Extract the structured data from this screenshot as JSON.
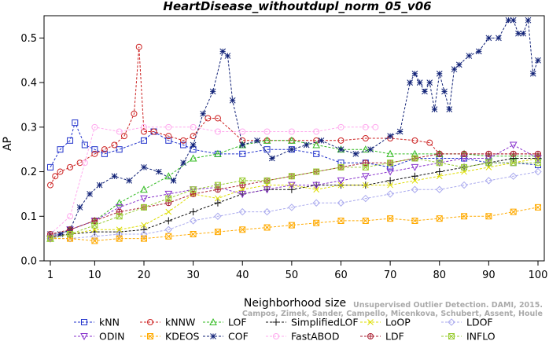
{
  "chart_data": {
    "type": "line",
    "title": "HeartDisease_withoutdupl_norm_05_v06",
    "xlabel": "Neighborhood size",
    "ylabel": "AP",
    "xlim": [
      1,
      100
    ],
    "ylim": [
      0,
      0.55
    ],
    "xticks": [
      1,
      10,
      20,
      30,
      40,
      50,
      60,
      70,
      80,
      90,
      100
    ],
    "yticks": [
      0.0,
      0.1,
      0.2,
      0.3,
      0.4,
      0.5
    ],
    "xtick_labels": [
      "1",
      "10",
      "20",
      "30",
      "40",
      "50",
      "60",
      "70",
      "80",
      "90",
      "100"
    ],
    "ytick_labels": [
      "0.0",
      "0.1",
      "0.2",
      "0.3",
      "0.4",
      "0.5"
    ],
    "legend_position": "bottom",
    "credit_lines": [
      "Unsupervised Outlier Detection. DAMI, 2015.",
      "Campos, Zimek, Sander, Campello, Micenkova, Schubert, Assent, Houle"
    ],
    "series": [
      {
        "name": "kNN",
        "color": "#2233cc",
        "marker": "square",
        "x": [
          1,
          3,
          5,
          6,
          8,
          10,
          12,
          15,
          20,
          22,
          25,
          28,
          30,
          35,
          40,
          45,
          50,
          55,
          60,
          65,
          70,
          75,
          80,
          85,
          90,
          95,
          100
        ],
        "y": [
          0.21,
          0.25,
          0.27,
          0.31,
          0.26,
          0.25,
          0.24,
          0.25,
          0.27,
          0.29,
          0.27,
          0.26,
          0.25,
          0.24,
          0.24,
          0.25,
          0.25,
          0.24,
          0.22,
          0.22,
          0.21,
          0.23,
          0.23,
          0.23,
          0.22,
          0.22,
          0.215
        ]
      },
      {
        "name": "kNNW",
        "color": "#cc2222",
        "marker": "circle",
        "x": [
          1,
          2,
          3,
          5,
          7,
          10,
          12,
          14,
          16,
          18,
          19,
          20,
          22,
          25,
          28,
          30,
          33,
          35,
          40,
          45,
          50,
          55,
          60,
          65,
          70,
          75,
          78,
          80,
          85,
          90,
          95,
          100
        ],
        "y": [
          0.17,
          0.19,
          0.2,
          0.21,
          0.22,
          0.24,
          0.25,
          0.26,
          0.28,
          0.33,
          0.48,
          0.29,
          0.29,
          0.28,
          0.27,
          0.28,
          0.32,
          0.32,
          0.27,
          0.27,
          0.27,
          0.27,
          0.27,
          0.275,
          0.275,
          0.27,
          0.265,
          0.24,
          0.24,
          0.24,
          0.24,
          0.24
        ]
      },
      {
        "name": "LOF",
        "color": "#33bb22",
        "marker": "triangle",
        "x": [
          1,
          5,
          10,
          15,
          20,
          25,
          30,
          35,
          40,
          45,
          50,
          55,
          60,
          65,
          70,
          75,
          80,
          85,
          90,
          95,
          100
        ],
        "y": [
          0.05,
          0.07,
          0.09,
          0.13,
          0.16,
          0.19,
          0.23,
          0.24,
          0.26,
          0.27,
          0.27,
          0.26,
          0.25,
          0.25,
          0.24,
          0.24,
          0.24,
          0.24,
          0.235,
          0.235,
          0.235
        ]
      },
      {
        "name": "SimplifiedLOF",
        "color": "#111111",
        "marker": "plus",
        "x": [
          1,
          5,
          10,
          15,
          20,
          25,
          30,
          35,
          40,
          45,
          50,
          55,
          60,
          65,
          70,
          75,
          80,
          85,
          90,
          95,
          100
        ],
        "y": [
          0.055,
          0.06,
          0.065,
          0.065,
          0.07,
          0.09,
          0.11,
          0.13,
          0.15,
          0.16,
          0.16,
          0.17,
          0.17,
          0.17,
          0.18,
          0.19,
          0.2,
          0.21,
          0.22,
          0.23,
          0.23
        ]
      },
      {
        "name": "LoOP",
        "color": "#dddd00",
        "marker": "cross",
        "x": [
          1,
          5,
          10,
          15,
          20,
          25,
          30,
          35,
          40,
          45,
          50,
          55,
          60,
          65,
          70,
          75,
          80,
          85,
          90,
          95,
          100
        ],
        "y": [
          0.05,
          0.06,
          0.07,
          0.07,
          0.08,
          0.11,
          0.15,
          0.14,
          0.16,
          0.17,
          0.17,
          0.16,
          0.17,
          0.17,
          0.17,
          0.18,
          0.19,
          0.2,
          0.21,
          0.22,
          0.23
        ]
      },
      {
        "name": "LDOF",
        "color": "#aaaaee",
        "marker": "diamond",
        "x": [
          1,
          5,
          10,
          15,
          20,
          25,
          30,
          35,
          40,
          45,
          50,
          55,
          60,
          65,
          70,
          75,
          80,
          85,
          90,
          95,
          100
        ],
        "y": [
          0.05,
          0.05,
          0.055,
          0.06,
          0.06,
          0.07,
          0.09,
          0.1,
          0.11,
          0.11,
          0.12,
          0.13,
          0.13,
          0.14,
          0.15,
          0.16,
          0.16,
          0.17,
          0.18,
          0.19,
          0.2
        ]
      },
      {
        "name": "ODIN",
        "color": "#8833cc",
        "marker": "triangle-down",
        "x": [
          1,
          5,
          10,
          15,
          20,
          25,
          30,
          35,
          40,
          45,
          50,
          55,
          60,
          65,
          70,
          75,
          80,
          85,
          90,
          95,
          100
        ],
        "y": [
          0.05,
          0.07,
          0.09,
          0.12,
          0.14,
          0.15,
          0.16,
          0.165,
          0.15,
          0.16,
          0.17,
          0.17,
          0.18,
          0.19,
          0.2,
          0.21,
          0.22,
          0.23,
          0.23,
          0.26,
          0.23
        ]
      },
      {
        "name": "KDEOS",
        "color": "#ffaa00",
        "marker": "square-x",
        "x": [
          1,
          5,
          10,
          15,
          20,
          25,
          30,
          35,
          40,
          45,
          50,
          55,
          60,
          65,
          70,
          75,
          80,
          85,
          90,
          95,
          100
        ],
        "y": [
          0.05,
          0.05,
          0.045,
          0.05,
          0.05,
          0.055,
          0.06,
          0.065,
          0.07,
          0.075,
          0.08,
          0.085,
          0.09,
          0.09,
          0.095,
          0.09,
          0.095,
          0.1,
          0.1,
          0.11,
          0.12
        ]
      },
      {
        "name": "COF",
        "color": "#112277",
        "marker": "asterisk",
        "x": [
          1,
          3,
          5,
          7,
          9,
          11,
          14,
          17,
          20,
          23,
          26,
          28,
          30,
          32,
          34,
          36,
          37,
          38,
          40,
          43,
          46,
          50,
          53,
          56,
          60,
          63,
          66,
          70,
          72,
          74,
          75,
          76,
          77,
          78,
          79,
          80,
          81,
          82,
          83,
          84,
          86,
          88,
          90,
          92,
          94,
          95,
          96,
          97,
          98,
          99,
          100
        ],
        "y": [
          0.06,
          0.06,
          0.07,
          0.12,
          0.15,
          0.17,
          0.19,
          0.18,
          0.21,
          0.2,
          0.18,
          0.22,
          0.26,
          0.33,
          0.38,
          0.47,
          0.46,
          0.36,
          0.26,
          0.27,
          0.23,
          0.25,
          0.26,
          0.27,
          0.25,
          0.24,
          0.25,
          0.28,
          0.29,
          0.4,
          0.42,
          0.4,
          0.38,
          0.4,
          0.34,
          0.42,
          0.38,
          0.34,
          0.43,
          0.44,
          0.46,
          0.47,
          0.5,
          0.5,
          0.54,
          0.54,
          0.51,
          0.51,
          0.54,
          0.42,
          0.45
        ]
      },
      {
        "name": "FastABOD",
        "color": "#ffaaee",
        "marker": "circle",
        "x": [
          1,
          5,
          8,
          10,
          15,
          20,
          25,
          30,
          35,
          40,
          45,
          50,
          55,
          60,
          65,
          67
        ],
        "y": [
          0.06,
          0.1,
          0.22,
          0.3,
          0.29,
          0.3,
          0.3,
          0.3,
          0.29,
          0.29,
          0.29,
          0.29,
          0.29,
          0.3,
          0.3,
          0.3
        ]
      },
      {
        "name": "LDF",
        "color": "#aa2233",
        "marker": "circle-plus",
        "x": [
          1,
          5,
          10,
          15,
          20,
          25,
          30,
          35,
          40,
          45,
          50,
          55,
          60,
          65,
          70,
          75,
          80,
          85,
          90,
          95,
          100
        ],
        "y": [
          0.06,
          0.07,
          0.09,
          0.11,
          0.12,
          0.13,
          0.15,
          0.16,
          0.17,
          0.18,
          0.19,
          0.2,
          0.21,
          0.22,
          0.22,
          0.23,
          0.24,
          0.24,
          0.24,
          0.24,
          0.24
        ]
      },
      {
        "name": "INFLO",
        "color": "#99cc33",
        "marker": "square-x",
        "x": [
          1,
          5,
          10,
          15,
          20,
          25,
          30,
          35,
          40,
          45,
          50,
          55,
          60,
          65,
          70,
          75,
          80,
          85,
          90,
          95,
          100
        ],
        "y": [
          0.05,
          0.06,
          0.08,
          0.1,
          0.12,
          0.14,
          0.16,
          0.17,
          0.18,
          0.18,
          0.19,
          0.2,
          0.21,
          0.21,
          0.22,
          0.23,
          0.22,
          0.21,
          0.22,
          0.22,
          0.22
        ]
      }
    ]
  }
}
